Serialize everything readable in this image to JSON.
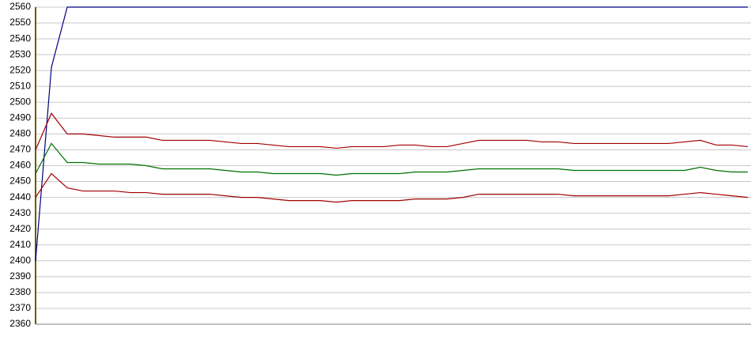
{
  "chart_data": {
    "type": "line",
    "categories": [
      null,
      null,
      null,
      null,
      null,
      null,
      null,
      null,
      null,
      null,
      null,
      null,
      null,
      null,
      null,
      null,
      null,
      null,
      null,
      null,
      null,
      null,
      null,
      null,
      null,
      null,
      null,
      null,
      null,
      null,
      null,
      null,
      null,
      null,
      null,
      null,
      null,
      null,
      null,
      null,
      null,
      null,
      null,
      null,
      null,
      null
    ],
    "series": [
      {
        "color": "#000080",
        "values": [
          2400,
          2522,
          2560,
          2560,
          2560,
          2560,
          2560,
          2560,
          2560,
          2560,
          2560,
          2560,
          2560,
          2560,
          2560,
          2560,
          2560,
          2560,
          2560,
          2560,
          2560,
          2560,
          2560,
          2560,
          2560,
          2560,
          2560,
          2560,
          2560,
          2560,
          2560,
          2560,
          2560,
          2560,
          2560,
          2560,
          2560,
          2560,
          2560,
          2560,
          2560,
          2560,
          2560,
          2560,
          2560,
          2560
        ]
      },
      {
        "color": "#a00000",
        "values": [
          2470,
          2493,
          2480,
          2480,
          2479,
          2478,
          2478,
          2478,
          2476,
          2476,
          2476,
          2476,
          2475,
          2474,
          2474,
          2473,
          2472,
          2472,
          2472,
          2471,
          2472,
          2472,
          2472,
          2473,
          2473,
          2472,
          2472,
          2474,
          2476,
          2476,
          2476,
          2476,
          2475,
          2475,
          2474,
          2474,
          2474,
          2474,
          2474,
          2474,
          2474,
          2475,
          2476,
          2473,
          2473,
          2472
        ]
      },
      {
        "color": "#007000",
        "values": [
          2455,
          2474,
          2462,
          2462,
          2461,
          2461,
          2461,
          2460,
          2458,
          2458,
          2458,
          2458,
          2457,
          2456,
          2456,
          2455,
          2455,
          2455,
          2455,
          2454,
          2455,
          2455,
          2455,
          2455,
          2456,
          2456,
          2456,
          2457,
          2458,
          2458,
          2458,
          2458,
          2458,
          2458,
          2457,
          2457,
          2457,
          2457,
          2457,
          2457,
          2457,
          2457,
          2459,
          2457,
          2456,
          2456
        ]
      },
      {
        "color": "#a00000",
        "values": [
          2440,
          2455,
          2446,
          2444,
          2444,
          2444,
          2443,
          2443,
          2442,
          2442,
          2442,
          2442,
          2441,
          2440,
          2440,
          2439,
          2438,
          2438,
          2438,
          2437,
          2438,
          2438,
          2438,
          2438,
          2439,
          2439,
          2439,
          2440,
          2442,
          2442,
          2442,
          2442,
          2442,
          2442,
          2441,
          2441,
          2441,
          2441,
          2441,
          2441,
          2441,
          2442,
          2443,
          2442,
          2441,
          2440
        ]
      }
    ],
    "ylim": [
      2360,
      2560
    ],
    "yticks": [
      2360,
      2370,
      2380,
      2390,
      2400,
      2410,
      2420,
      2430,
      2440,
      2450,
      2460,
      2470,
      2480,
      2490,
      2500,
      2510,
      2520,
      2530,
      2540,
      2550,
      2560
    ],
    "grid": true
  }
}
